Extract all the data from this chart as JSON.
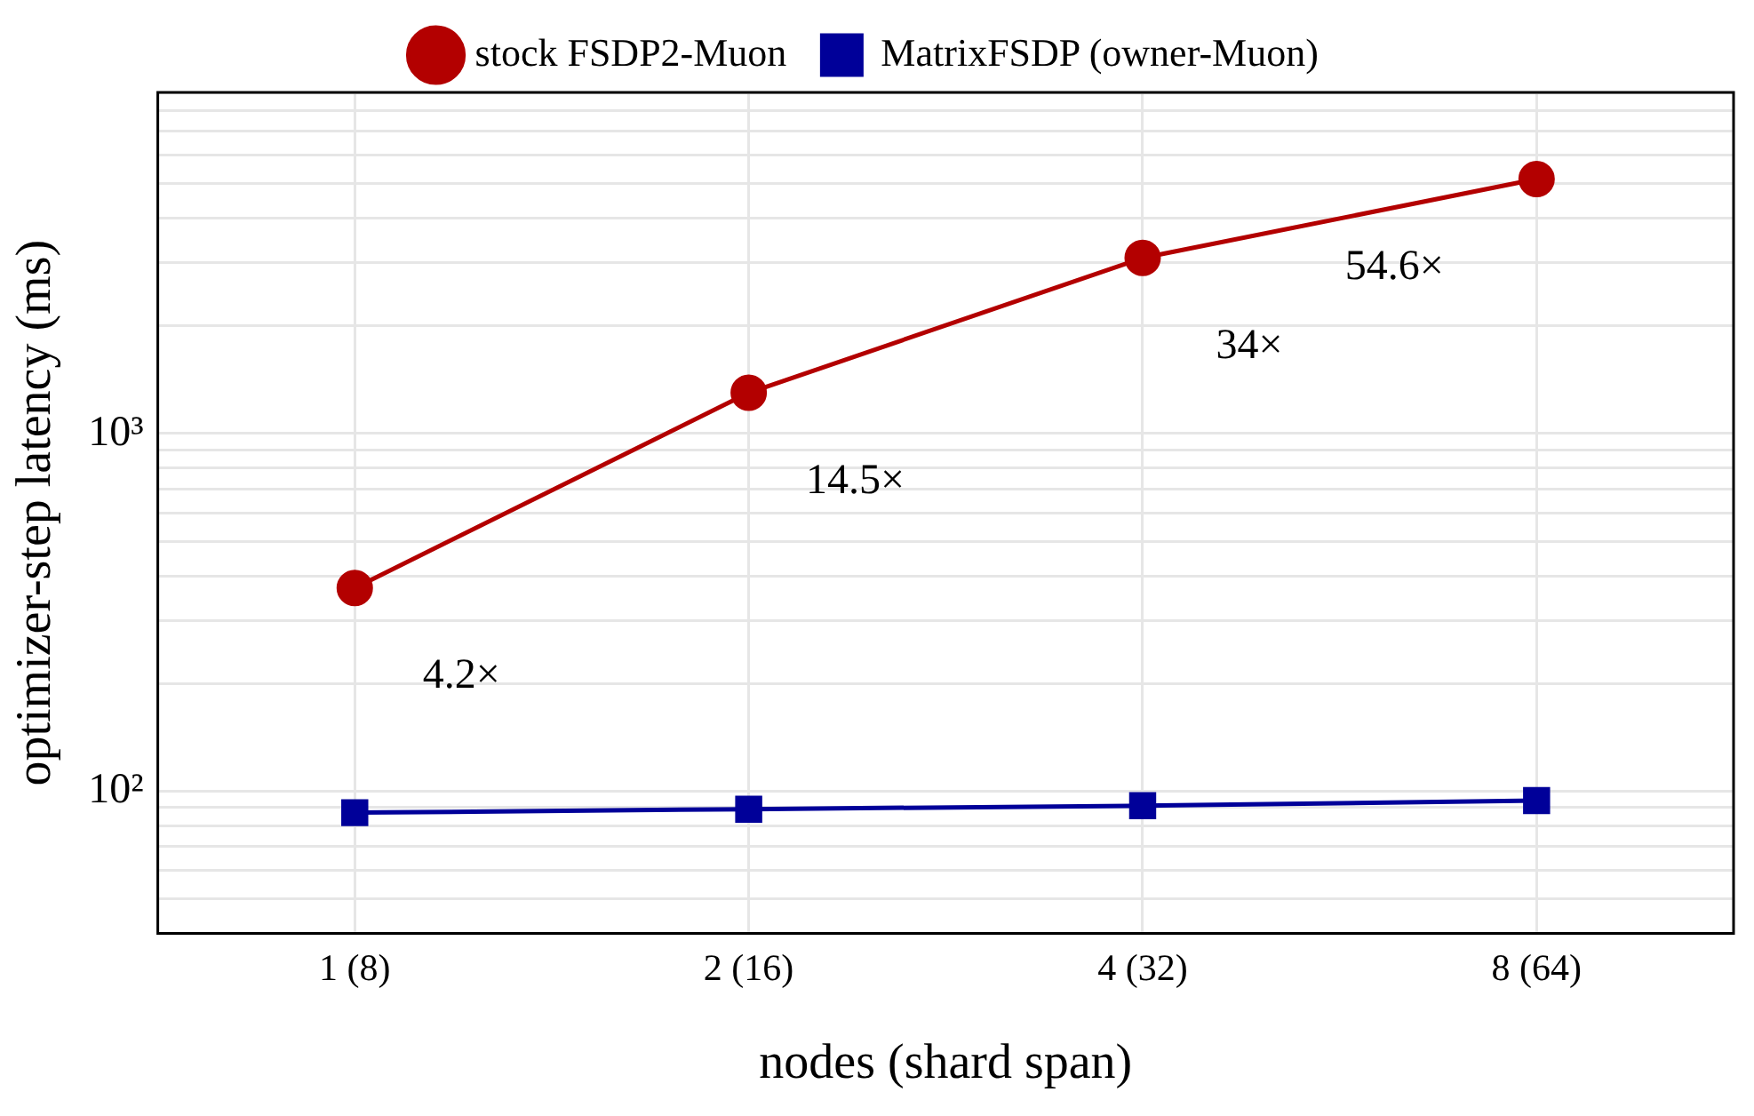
{
  "chart_data": {
    "type": "line",
    "xlabel": "nodes (shard span)",
    "ylabel": "optimizer-step latency (ms)",
    "categories": [
      "1 (8)",
      "2 (16)",
      "4 (32)",
      "8 (64)"
    ],
    "series": [
      {
        "name": "stock FSDP2-Muon",
        "color": "#b30000",
        "values": [
          370,
          1300,
          3100,
          5150
        ],
        "marker": "circle"
      },
      {
        "name": "MatrixFSDP (owner-Muon)",
        "color": "#000099",
        "values": [
          87,
          89,
          91,
          94
        ],
        "marker": "square"
      }
    ],
    "log": "y",
    "grid": true,
    "legend": "top",
    "line_style": "solid",
    "ylim": [
      40,
      9000
    ],
    "yticks": [
      {
        "value": 40,
        "label": null
      },
      {
        "value": 50,
        "label": null
      },
      {
        "value": 60,
        "label": null
      },
      {
        "value": 70,
        "label": null
      },
      {
        "value": 80,
        "label": null
      },
      {
        "value": 90,
        "label": null
      },
      {
        "value": 100,
        "label": "10²"
      },
      {
        "value": 200,
        "label": null
      },
      {
        "value": 300,
        "label": null
      },
      {
        "value": 400,
        "label": null
      },
      {
        "value": 500,
        "label": null
      },
      {
        "value": 600,
        "label": null
      },
      {
        "value": 700,
        "label": null
      },
      {
        "value": 800,
        "label": null
      },
      {
        "value": 900,
        "label": null
      },
      {
        "value": 1000,
        "label": "10³"
      },
      {
        "value": 2000,
        "label": null
      },
      {
        "value": 3000,
        "label": null
      },
      {
        "value": 4000,
        "label": null
      },
      {
        "value": 5000,
        "label": null
      },
      {
        "value": 6000,
        "label": null
      },
      {
        "value": 7000,
        "label": null
      },
      {
        "value": 8000,
        "label": null
      },
      {
        "value": 9000,
        "label": null
      }
    ],
    "annotations": [
      "4.2×",
      "14.5×",
      "34×",
      "54.6×"
    ]
  }
}
